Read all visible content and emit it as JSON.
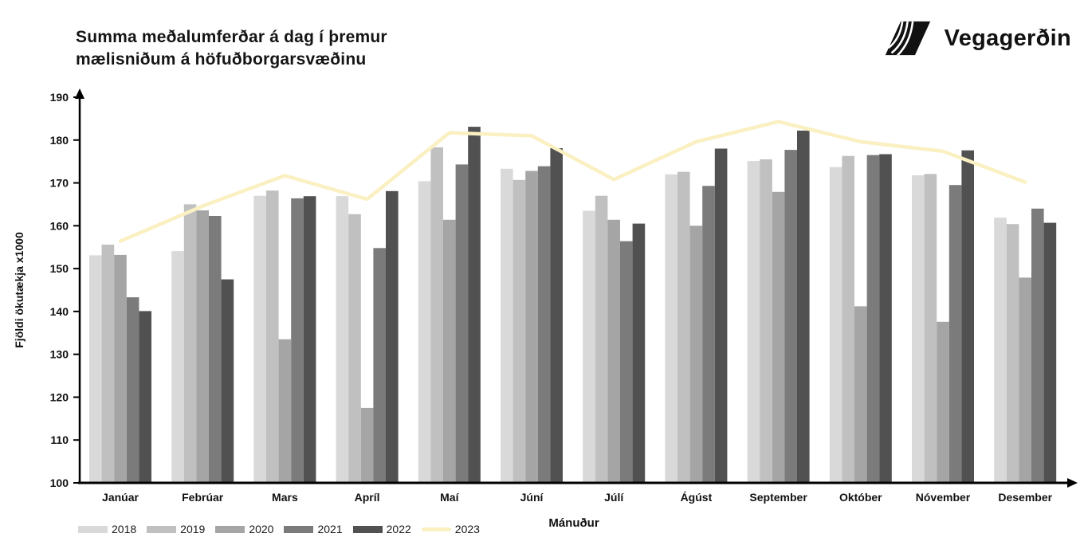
{
  "header": {
    "title": "Summa meðalumferðar á dag í þremur\nmælisniðum á höfuðborgarsvæðinu",
    "logo_text": "Vegagerðin"
  },
  "chart_data": {
    "type": "bar",
    "title": "Summa meðalumferðar á dag í þremur mælisniðum á höfuðborgarsvæðinu",
    "xlabel": "Mánuður",
    "ylabel": "Fjöldi ökutækja x1000",
    "ylim": [
      100,
      190
    ],
    "ytick_step": 10,
    "grid": false,
    "legend_position": "bottom-left",
    "categories": [
      "Janúar",
      "Febrúar",
      "Mars",
      "Apríl",
      "Maí",
      "Júní",
      "Júlí",
      "Ágúst",
      "September",
      "Október",
      "Nóvember",
      "Desember"
    ],
    "series": [
      {
        "name": "2018",
        "type": "bar",
        "color": "#d9d9d9",
        "values": [
          153.1,
          154.1,
          167.0,
          166.9,
          170.4,
          173.3,
          163.5,
          172.0,
          175.1,
          173.7,
          171.8,
          161.9
        ]
      },
      {
        "name": "2019",
        "type": "bar",
        "color": "#c0c0c0",
        "values": [
          155.6,
          165.0,
          168.2,
          162.7,
          178.3,
          170.7,
          167.0,
          172.6,
          175.5,
          176.3,
          172.1,
          160.4
        ]
      },
      {
        "name": "2020",
        "type": "bar",
        "color": "#a5a5a5",
        "values": [
          153.2,
          163.6,
          133.5,
          117.5,
          161.4,
          172.8,
          161.4,
          160.0,
          167.9,
          141.2,
          137.6,
          147.9
        ]
      },
      {
        "name": "2021",
        "type": "bar",
        "color": "#7b7b7b",
        "values": [
          143.3,
          162.3,
          166.4,
          154.8,
          174.3,
          173.9,
          156.4,
          169.3,
          177.7,
          176.5,
          169.5,
          164.0
        ]
      },
      {
        "name": "2022",
        "type": "bar",
        "color": "#515151",
        "values": [
          140.1,
          147.5,
          166.9,
          168.1,
          183.1,
          178.1,
          160.5,
          178.0,
          182.2,
          176.7,
          177.6,
          160.7
        ]
      },
      {
        "name": "2023",
        "type": "line",
        "color": "#faf0c2",
        "values": [
          156.4,
          164.6,
          171.7,
          166.2,
          181.7,
          181.0,
          170.8,
          179.6,
          184.3,
          179.6,
          177.4,
          170.2
        ]
      }
    ]
  }
}
